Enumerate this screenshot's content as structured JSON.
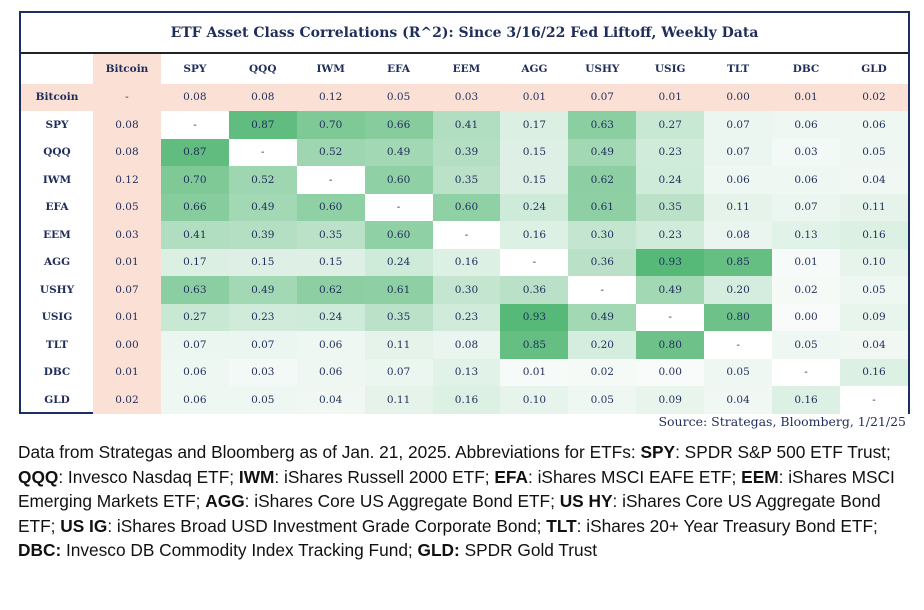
{
  "chart_data": {
    "type": "heatmap",
    "title": "ETF Asset Class Correlations (R^2): Since 3/16/22 Fed Liftoff, Weekly Data",
    "columns": [
      "Bitcoin",
      "SPY",
      "QQQ",
      "IWM",
      "EFA",
      "EEM",
      "AGG",
      "USHY",
      "USIG",
      "TLT",
      "DBC",
      "GLD"
    ],
    "rows": [
      "Bitcoin",
      "SPY",
      "QQQ",
      "IWM",
      "EFA",
      "EEM",
      "AGG",
      "USHY",
      "USIG",
      "TLT",
      "DBC",
      "GLD"
    ],
    "values": [
      [
        null,
        0.08,
        0.08,
        0.12,
        0.05,
        0.03,
        0.01,
        0.07,
        0.01,
        0.0,
        0.01,
        0.02
      ],
      [
        0.08,
        null,
        0.87,
        0.7,
        0.66,
        0.41,
        0.17,
        0.63,
        0.27,
        0.07,
        0.06,
        0.06
      ],
      [
        0.08,
        0.87,
        null,
        0.52,
        0.49,
        0.39,
        0.15,
        0.49,
        0.23,
        0.07,
        0.03,
        0.05
      ],
      [
        0.12,
        0.7,
        0.52,
        null,
        0.6,
        0.35,
        0.15,
        0.62,
        0.24,
        0.06,
        0.06,
        0.04
      ],
      [
        0.05,
        0.66,
        0.49,
        0.6,
        null,
        0.6,
        0.24,
        0.61,
        0.35,
        0.11,
        0.07,
        0.11
      ],
      [
        0.03,
        0.41,
        0.39,
        0.35,
        0.6,
        null,
        0.16,
        0.3,
        0.23,
        0.08,
        0.13,
        0.16
      ],
      [
        0.01,
        0.17,
        0.15,
        0.15,
        0.24,
        0.16,
        null,
        0.36,
        0.93,
        0.85,
        0.01,
        0.1
      ],
      [
        0.07,
        0.63,
        0.49,
        0.62,
        0.61,
        0.3,
        0.36,
        null,
        0.49,
        0.2,
        0.02,
        0.05
      ],
      [
        0.01,
        0.27,
        0.23,
        0.24,
        0.35,
        0.23,
        0.93,
        0.49,
        null,
        0.8,
        0.0,
        0.09
      ],
      [
        0.0,
        0.07,
        0.07,
        0.06,
        0.11,
        0.08,
        0.85,
        0.2,
        0.8,
        null,
        0.05,
        0.04
      ],
      [
        0.01,
        0.06,
        0.03,
        0.06,
        0.07,
        0.13,
        0.01,
        0.02,
        0.0,
        0.05,
        null,
        0.16
      ],
      [
        0.02,
        0.06,
        0.05,
        0.04,
        0.11,
        0.16,
        0.1,
        0.05,
        0.09,
        0.04,
        0.16,
        null
      ]
    ],
    "diagonal_label": "-",
    "color_scale": {
      "low": "#f8fbfa",
      "high": "#57b977"
    },
    "highlight_color": "#fbe0d5"
  },
  "source": "Source: Strategas, Bloomberg, 1/21/25",
  "caption": [
    {
      "text": "Data from Strategas and Bloomberg as of Jan. 21, 2025. Abbreviations for ETFs: ",
      "bold": false
    },
    {
      "text": "SPY",
      "bold": true
    },
    {
      "text": ": SPDR S&P 500 ETF Trust; ",
      "bold": false
    },
    {
      "text": "QQQ",
      "bold": true
    },
    {
      "text": ": Invesco Nasdaq ETF; ",
      "bold": false
    },
    {
      "text": "IWM",
      "bold": true
    },
    {
      "text": ": iShares Russell 2000 ETF; ",
      "bold": false
    },
    {
      "text": "EFA",
      "bold": true
    },
    {
      "text": ": iShares MSCI EAFE ETF; ",
      "bold": false
    },
    {
      "text": "EEM",
      "bold": true
    },
    {
      "text": ": iShares MSCI Emerging Markets ETF; ",
      "bold": false
    },
    {
      "text": "AGG",
      "bold": true
    },
    {
      "text": ": iShares Core US Aggregate Bond ETF; ",
      "bold": false
    },
    {
      "text": "US HY",
      "bold": true
    },
    {
      "text": ": iShares Core US Aggregate Bond ETF; ",
      "bold": false
    },
    {
      "text": "US IG",
      "bold": true
    },
    {
      "text": ": iShares Broad USD Investment Grade Corporate Bond; ",
      "bold": false
    },
    {
      "text": "TLT",
      "bold": true
    },
    {
      "text": ":  iShares 20+ Year Treasury Bond ETF; ",
      "bold": false
    },
    {
      "text": "DBC:",
      "bold": true
    },
    {
      "text": " Invesco DB Commodity Index Tracking Fund; ",
      "bold": false
    },
    {
      "text": "GLD:",
      "bold": true
    },
    {
      "text": " SPDR Gold Trust",
      "bold": false
    }
  ]
}
